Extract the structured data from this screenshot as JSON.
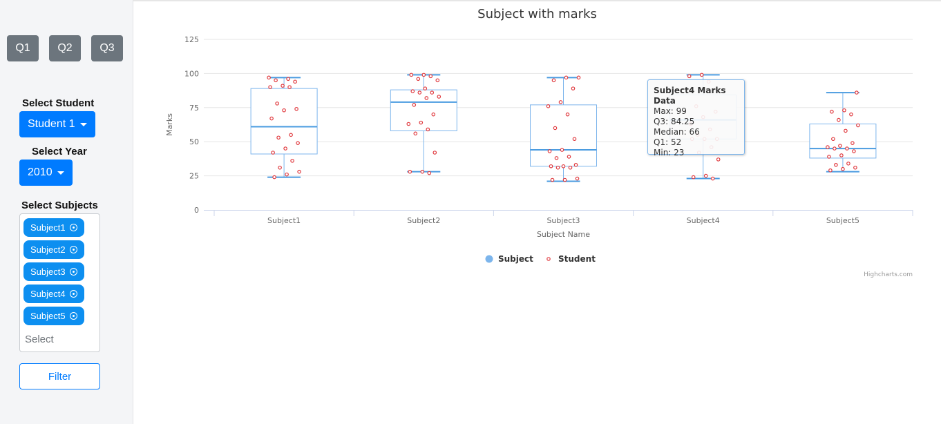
{
  "sidebar": {
    "quarters": [
      "Q1",
      "Q2",
      "Q3"
    ],
    "student_label": "Select Student",
    "student_value": "Student 1",
    "year_label": "Select Year",
    "year_value": "2010",
    "subjects_label": "Select Subjects",
    "selected_subjects": [
      "Subject1",
      "Subject2",
      "Subject3",
      "Subject4",
      "Subject5"
    ],
    "subjects_placeholder": "Select",
    "filter_label": "Filter"
  },
  "chart_data": {
    "type": "boxplot",
    "title": "Subject with marks",
    "xlabel": "Subject Name",
    "ylabel": "Marks",
    "categories": [
      "Subject1",
      "Subject2",
      "Subject3",
      "Subject4",
      "Subject5"
    ],
    "ylim": [
      0,
      125
    ],
    "yticks": [
      0,
      25,
      50,
      75,
      100,
      125
    ],
    "grid": true,
    "legend": {
      "position": "bottom-center",
      "items": [
        "Subject",
        "Student"
      ]
    },
    "colors": {
      "box": "#7cb5ec",
      "median": "#4a9be0",
      "points": "#e0393e",
      "grid": "#e6e6e6",
      "axis": "#ccd6eb"
    },
    "series": [
      {
        "name": "Subject",
        "boxes": [
          {
            "min": 24,
            "q1": 41,
            "median": 61,
            "q3": 89,
            "max": 97
          },
          {
            "min": 28,
            "q1": 58,
            "median": 79,
            "q3": 88,
            "max": 99
          },
          {
            "min": 21,
            "q1": 32,
            "median": 44,
            "q3": 77,
            "max": 97
          },
          {
            "min": 23,
            "q1": 52,
            "median": 66,
            "q3": 84.25,
            "max": 99
          },
          {
            "min": 28,
            "q1": 38,
            "median": 45,
            "q3": 63,
            "max": 86
          }
        ]
      },
      {
        "name": "Student",
        "points": [
          [
            97,
            96,
            95,
            94,
            91,
            90,
            90,
            78,
            74,
            73,
            67,
            55,
            53,
            49,
            45,
            42,
            36,
            31,
            28,
            26,
            24
          ],
          [
            99,
            99,
            98,
            96,
            95,
            89,
            87,
            86,
            86,
            83,
            82,
            77,
            70,
            64,
            63,
            59,
            56,
            42,
            28,
            28,
            27
          ],
          [
            97,
            97,
            95,
            89,
            79,
            76,
            70,
            60,
            52,
            44,
            43,
            39,
            38,
            33,
            32,
            32,
            31,
            31,
            23,
            22,
            22
          ],
          [
            99,
            98,
            94,
            76,
            72,
            68,
            63,
            59,
            55,
            52,
            52,
            52,
            46,
            42,
            37,
            25,
            24,
            23
          ],
          [
            86,
            73,
            72,
            70,
            66,
            62,
            58,
            52,
            49,
            47,
            46,
            45,
            45,
            43,
            40,
            39,
            34,
            33,
            31,
            30,
            29
          ]
        ]
      }
    ],
    "tooltip": {
      "title": "Subject4 Marks Data",
      "lines": [
        "Max: 99",
        "Q3: 84.25",
        "Median: 66",
        "Q1: 52",
        "Min: 23"
      ]
    },
    "credits": "Highcharts.com"
  }
}
